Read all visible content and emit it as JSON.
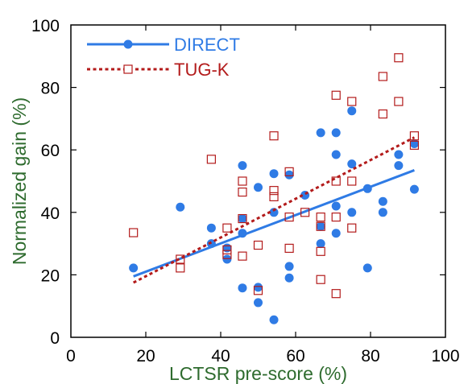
{
  "chart_data": {
    "type": "scatter",
    "xlabel": "LCTSR pre-score (%)",
    "ylabel": "Normalized gain (%)",
    "xlim": [
      0,
      100
    ],
    "ylim": [
      0,
      100
    ],
    "x_ticks": [
      "0",
      "20",
      "40",
      "60",
      "80",
      "100"
    ],
    "y_ticks": [
      "0",
      "20",
      "40",
      "60",
      "80",
      "100"
    ],
    "grid": false,
    "legend_position": "top-left",
    "label_color": "#2e6b2e",
    "series": [
      {
        "name": "DIRECT",
        "color": "#2f7be5",
        "marker": "filled-circle",
        "line_style": "solid",
        "fit_line": {
          "x": [
            16.7,
            91.7
          ],
          "y": [
            19.5,
            53.5
          ]
        },
        "points": [
          [
            16.7,
            22.2
          ],
          [
            29.2,
            41.7
          ],
          [
            37.5,
            35.0
          ],
          [
            37.5,
            30.0
          ],
          [
            41.7,
            28.6
          ],
          [
            41.7,
            25.0
          ],
          [
            45.8,
            55.0
          ],
          [
            45.8,
            38.0
          ],
          [
            45.8,
            33.3
          ],
          [
            45.8,
            15.8
          ],
          [
            50.0,
            48.0
          ],
          [
            50.0,
            16.0
          ],
          [
            50.0,
            11.1
          ],
          [
            54.2,
            52.4
          ],
          [
            54.2,
            40.0
          ],
          [
            54.2,
            5.6
          ],
          [
            58.3,
            52.0
          ],
          [
            58.3,
            22.7
          ],
          [
            58.3,
            19.0
          ],
          [
            62.5,
            45.5
          ],
          [
            66.7,
            65.5
          ],
          [
            66.7,
            35.5
          ],
          [
            66.7,
            30.0
          ],
          [
            70.8,
            65.5
          ],
          [
            70.8,
            58.5
          ],
          [
            70.8,
            42.0
          ],
          [
            70.8,
            33.3
          ],
          [
            75.0,
            72.5
          ],
          [
            75.0,
            55.5
          ],
          [
            75.0,
            40.0
          ],
          [
            79.2,
            47.6
          ],
          [
            79.2,
            22.2
          ],
          [
            83.3,
            43.5
          ],
          [
            83.3,
            40.0
          ],
          [
            87.5,
            58.5
          ],
          [
            87.5,
            55.0
          ],
          [
            91.7,
            62.0
          ],
          [
            91.7,
            47.4
          ]
        ]
      },
      {
        "name": "TUG-K",
        "color": "#b31b1b",
        "marker": "open-square",
        "line_style": "dotted",
        "fit_line": {
          "x": [
            16.7,
            91.7
          ],
          "y": [
            17.5,
            64.0
          ]
        },
        "points": [
          [
            16.7,
            33.5
          ],
          [
            29.2,
            25.0
          ],
          [
            29.2,
            22.2
          ],
          [
            37.5,
            57.0
          ],
          [
            41.7,
            35.0
          ],
          [
            41.7,
            28.0
          ],
          [
            41.7,
            26.5
          ],
          [
            45.8,
            50.0
          ],
          [
            45.8,
            46.5
          ],
          [
            45.8,
            38.0
          ],
          [
            45.8,
            26.0
          ],
          [
            50.0,
            29.5
          ],
          [
            50.0,
            15.0
          ],
          [
            54.2,
            64.5
          ],
          [
            54.2,
            47.0
          ],
          [
            54.2,
            45.0
          ],
          [
            58.3,
            53.0
          ],
          [
            58.3,
            38.5
          ],
          [
            58.3,
            28.5
          ],
          [
            62.5,
            40.0
          ],
          [
            66.7,
            38.5
          ],
          [
            66.7,
            35.5
          ],
          [
            66.7,
            27.5
          ],
          [
            66.7,
            18.5
          ],
          [
            70.8,
            77.5
          ],
          [
            70.8,
            50.0
          ],
          [
            70.8,
            38.5
          ],
          [
            70.8,
            14.0
          ],
          [
            75.0,
            75.5
          ],
          [
            75.0,
            50.0
          ],
          [
            75.0,
            35.0
          ],
          [
            83.3,
            83.5
          ],
          [
            83.3,
            71.5
          ],
          [
            87.5,
            89.5
          ],
          [
            87.5,
            75.5
          ],
          [
            91.7,
            64.5
          ],
          [
            91.7,
            61.5
          ]
        ]
      }
    ]
  }
}
